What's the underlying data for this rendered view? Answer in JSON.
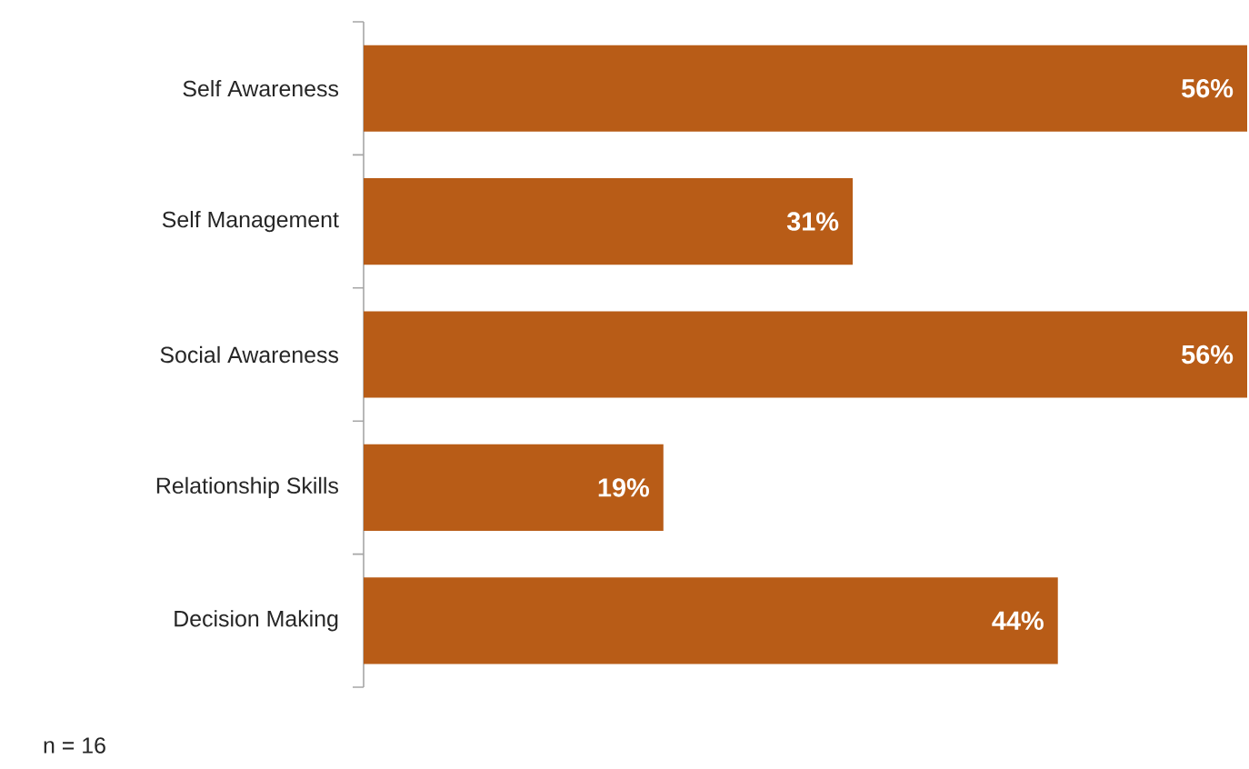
{
  "chart_data": {
    "type": "bar",
    "orientation": "horizontal",
    "categories": [
      "Self Awareness",
      "Self Management",
      "Social Awareness",
      "Relationship Skills",
      "Decision Making"
    ],
    "values": [
      56,
      31,
      56,
      19,
      44
    ],
    "value_labels": [
      "56%",
      "31%",
      "56%",
      "19%",
      "44%"
    ],
    "color": "#b85c17",
    "annotations": [
      "n = 16"
    ]
  }
}
